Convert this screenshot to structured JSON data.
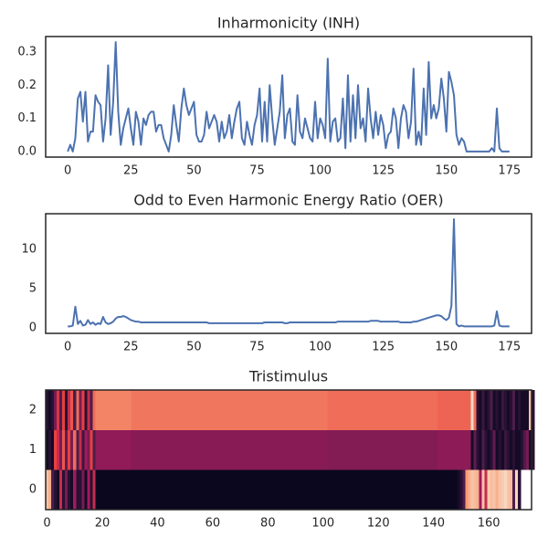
{
  "chart_data": [
    {
      "type": "line",
      "title": "Inharmonicity (INH)",
      "color": "#4c72b0",
      "x": [
        0,
        1,
        2,
        3,
        4,
        5,
        6,
        7,
        8,
        9,
        10,
        11,
        12,
        13,
        14,
        15,
        16,
        17,
        18,
        19,
        20,
        21,
        22,
        23,
        24,
        25,
        26,
        27,
        28,
        29,
        30,
        31,
        32,
        33,
        34,
        35,
        36,
        37,
        38,
        39,
        40,
        41,
        42,
        43,
        44,
        45,
        46,
        47,
        48,
        49,
        50,
        51,
        52,
        53,
        54,
        55,
        56,
        57,
        58,
        59,
        60,
        61,
        62,
        63,
        64,
        65,
        66,
        67,
        68,
        69,
        70,
        71,
        72,
        73,
        74,
        75,
        76,
        77,
        78,
        79,
        80,
        81,
        82,
        83,
        84,
        85,
        86,
        87,
        88,
        89,
        90,
        91,
        92,
        93,
        94,
        95,
        96,
        97,
        98,
        99,
        100,
        101,
        102,
        103,
        104,
        105,
        106,
        107,
        108,
        109,
        110,
        111,
        112,
        113,
        114,
        115,
        116,
        117,
        118,
        119,
        120,
        121,
        122,
        123,
        124,
        125,
        126,
        127,
        128,
        129,
        130,
        131,
        132,
        133,
        134,
        135,
        136,
        137,
        138,
        139,
        140,
        141,
        142,
        143,
        144,
        145,
        146,
        147,
        148,
        149,
        150,
        151,
        152,
        153,
        154,
        155,
        156,
        157,
        158,
        159,
        160,
        161,
        162,
        163,
        164,
        165,
        166,
        167,
        168,
        169,
        170,
        171,
        172,
        173,
        174,
        175
      ],
      "values": [
        0,
        0.02,
        0,
        0.04,
        0.16,
        0.18,
        0.09,
        0.18,
        0.03,
        0.06,
        0.06,
        0.17,
        0.15,
        0.14,
        0.03,
        0.1,
        0.26,
        0.05,
        0.15,
        0.33,
        0.12,
        0.02,
        0.07,
        0.1,
        0.13,
        0.07,
        0.02,
        0.12,
        0.09,
        0.02,
        0.1,
        0.08,
        0.11,
        0.12,
        0.12,
        0.06,
        0.08,
        0.08,
        0.04,
        0.02,
        0,
        0.05,
        0.14,
        0.08,
        0.03,
        0.13,
        0.19,
        0.14,
        0.11,
        0.13,
        0.15,
        0.05,
        0.03,
        0.03,
        0.05,
        0.12,
        0.07,
        0.09,
        0.11,
        0.09,
        0.03,
        0.09,
        0.04,
        0.06,
        0.11,
        0.04,
        0.09,
        0.13,
        0.15,
        0.04,
        0.02,
        0.09,
        0.05,
        0.02,
        0.08,
        0.11,
        0.19,
        0.03,
        0.15,
        0.03,
        0.2,
        0.1,
        0.02,
        0.07,
        0.12,
        0.23,
        0.04,
        0.11,
        0.13,
        0.03,
        0.02,
        0.17,
        0.06,
        0.04,
        0.1,
        0.07,
        0.04,
        0.03,
        0.15,
        0.04,
        0.1,
        0.08,
        0.04,
        0.28,
        0.03,
        0.09,
        0.1,
        0.03,
        0.04,
        0.16,
        0.01,
        0.23,
        0.03,
        0.17,
        0.04,
        0.2,
        0.07,
        0.1,
        0.03,
        0.19,
        0.1,
        0.04,
        0.12,
        0.05,
        0.11,
        0.08,
        0.01,
        0.05,
        0.06,
        0.13,
        0.1,
        0.01,
        0.1,
        0.14,
        0.12,
        0.04,
        0.09,
        0.25,
        0.02,
        0.06,
        0.02,
        0.19,
        0.05,
        0.27,
        0.1,
        0.14,
        0.1,
        0.13,
        0.22,
        0.16,
        0.06,
        0.24,
        0.21,
        0.17,
        0.05,
        0.02,
        0.04,
        0.03,
        0,
        0,
        0,
        0,
        0,
        0,
        0,
        0,
        0,
        0,
        0.01,
        0,
        0.13,
        0.01,
        0,
        0,
        0,
        0
      ],
      "xlim": [
        -8.75,
        183.75
      ],
      "ylim": [
        -0.017,
        0.347
      ],
      "xticks": [
        0,
        25,
        50,
        75,
        100,
        125,
        150,
        175
      ],
      "yticks": [
        {
          "value": 0,
          "label": "0.0"
        },
        0.1,
        0.2,
        0.3
      ]
    },
    {
      "type": "line",
      "title": "Odd to Even Harmonic Energy Ratio (OER)",
      "color": "#4c72b0",
      "x": [
        0,
        1,
        2,
        3,
        4,
        5,
        6,
        7,
        8,
        9,
        10,
        11,
        12,
        13,
        14,
        15,
        16,
        17,
        18,
        19,
        20,
        21,
        22,
        23,
        24,
        25,
        26,
        27,
        28,
        29,
        30,
        31,
        32,
        33,
        34,
        35,
        36,
        37,
        38,
        39,
        40,
        41,
        42,
        43,
        44,
        45,
        46,
        47,
        48,
        49,
        50,
        51,
        52,
        53,
        54,
        55,
        56,
        57,
        58,
        59,
        60,
        61,
        62,
        63,
        64,
        65,
        66,
        67,
        68,
        69,
        70,
        71,
        72,
        73,
        74,
        75,
        76,
        77,
        78,
        79,
        80,
        81,
        82,
        83,
        84,
        85,
        86,
        87,
        88,
        89,
        90,
        91,
        92,
        93,
        94,
        95,
        96,
        97,
        98,
        99,
        100,
        101,
        102,
        103,
        104,
        105,
        106,
        107,
        108,
        109,
        110,
        111,
        112,
        113,
        114,
        115,
        116,
        117,
        118,
        119,
        120,
        121,
        122,
        123,
        124,
        125,
        126,
        127,
        128,
        129,
        130,
        131,
        132,
        133,
        134,
        135,
        136,
        137,
        138,
        139,
        140,
        141,
        142,
        143,
        144,
        145,
        146,
        147,
        148,
        149,
        150,
        151,
        152,
        153,
        154,
        155,
        156,
        157,
        158,
        159,
        160,
        161,
        162,
        163,
        164,
        165,
        166,
        167,
        168,
        169,
        170,
        171,
        172,
        173,
        174,
        175
      ],
      "values": [
        0.2,
        0.2,
        0.3,
        2.7,
        0.5,
        0.9,
        0.3,
        0.4,
        1.0,
        0.5,
        0.7,
        0.4,
        0.6,
        0.5,
        1.4,
        0.7,
        0.5,
        0.6,
        0.8,
        1.2,
        1.4,
        1.4,
        1.5,
        1.4,
        1.2,
        1.0,
        0.9,
        0.8,
        0.8,
        0.7,
        0.7,
        0.7,
        0.7,
        0.7,
        0.7,
        0.7,
        0.7,
        0.7,
        0.7,
        0.7,
        0.7,
        0.7,
        0.7,
        0.7,
        0.7,
        0.7,
        0.7,
        0.7,
        0.7,
        0.7,
        0.7,
        0.7,
        0.7,
        0.7,
        0.7,
        0.7,
        0.6,
        0.6,
        0.6,
        0.6,
        0.6,
        0.6,
        0.6,
        0.6,
        0.6,
        0.6,
        0.6,
        0.6,
        0.6,
        0.6,
        0.6,
        0.6,
        0.6,
        0.6,
        0.6,
        0.6,
        0.6,
        0.6,
        0.7,
        0.7,
        0.7,
        0.7,
        0.7,
        0.7,
        0.7,
        0.7,
        0.6,
        0.6,
        0.7,
        0.7,
        0.7,
        0.7,
        0.7,
        0.7,
        0.7,
        0.7,
        0.7,
        0.7,
        0.7,
        0.7,
        0.7,
        0.7,
        0.7,
        0.7,
        0.7,
        0.7,
        0.7,
        0.8,
        0.8,
        0.8,
        0.8,
        0.8,
        0.8,
        0.8,
        0.8,
        0.8,
        0.8,
        0.8,
        0.8,
        0.8,
        0.9,
        0.9,
        0.9,
        0.9,
        0.8,
        0.8,
        0.8,
        0.8,
        0.8,
        0.8,
        0.8,
        0.8,
        0.7,
        0.7,
        0.7,
        0.7,
        0.7,
        0.8,
        0.8,
        0.9,
        1.0,
        1.1,
        1.2,
        1.3,
        1.4,
        1.5,
        1.6,
        1.6,
        1.5,
        1.2,
        1.0,
        1.3,
        2.8,
        13.8,
        0.5,
        0.2,
        0.3,
        0.2,
        0.2,
        0.2,
        0.2,
        0.2,
        0.2,
        0.2,
        0.2,
        0.2,
        0.2,
        0.2,
        0.2,
        0.3,
        2.1,
        0.3,
        0.2,
        0.2,
        0.2,
        0.2
      ],
      "xlim": [
        -8.75,
        183.75
      ],
      "ylim": [
        -0.69,
        14.5
      ],
      "xticks": [
        0,
        25,
        50,
        75,
        100,
        125,
        150,
        175
      ],
      "yticks": [
        0,
        5,
        10
      ]
    },
    {
      "type": "heatmap",
      "title": "Tristimulus",
      "z": [
        [
          0.9,
          0.85,
          0.2,
          0.1,
          0.05,
          0.5,
          0.1,
          0.3,
          0.1,
          0.05,
          0.4,
          0.1,
          0.1,
          0.3,
          0.05,
          0.4,
          0.1,
          0.5,
          0.02,
          0.02,
          0.02,
          0.02,
          0.02,
          0.02,
          0.02,
          0.02,
          0.02,
          0.02,
          0.02,
          0.02,
          0.02,
          0.02,
          0.02,
          0.02,
          0.02,
          0.02,
          0.02,
          0.02,
          0.02,
          0.02,
          0.02,
          0.02,
          0.02,
          0.02,
          0.02,
          0.02,
          0.02,
          0.02,
          0.02,
          0.02,
          0.02,
          0.02,
          0.02,
          0.02,
          0.02,
          0.02,
          0.02,
          0.02,
          0.02,
          0.02,
          0.02,
          0.02,
          0.02,
          0.02,
          0.02,
          0.02,
          0.02,
          0.02,
          0.02,
          0.02,
          0.02,
          0.02,
          0.02,
          0.02,
          0.02,
          0.02,
          0.02,
          0.02,
          0.02,
          0.02,
          0.02,
          0.02,
          0.02,
          0.02,
          0.02,
          0.02,
          0.02,
          0.02,
          0.02,
          0.02,
          0.02,
          0.02,
          0.02,
          0.02,
          0.02,
          0.02,
          0.02,
          0.02,
          0.02,
          0.02,
          0.02,
          0.02,
          0.02,
          0.02,
          0.02,
          0.02,
          0.02,
          0.02,
          0.02,
          0.02,
          0.02,
          0.02,
          0.02,
          0.02,
          0.02,
          0.02,
          0.02,
          0.02,
          0.02,
          0.02,
          0.02,
          0.02,
          0.02,
          0.02,
          0.02,
          0.02,
          0.02,
          0.02,
          0.02,
          0.02,
          0.02,
          0.02,
          0.02,
          0.02,
          0.02,
          0.02,
          0.02,
          0.02,
          0.02,
          0.02,
          0.02,
          0.02,
          0.02,
          0.02,
          0.02,
          0.02,
          0.02,
          0.02,
          0.02,
          0.05,
          0.1,
          0.2,
          0.8,
          0.85,
          0.9,
          0.88,
          0.85,
          0.4,
          0.9,
          0.5,
          0.92,
          0.88,
          0.9,
          0.85,
          0.9,
          0.92,
          0.95,
          0.9,
          0.88,
          0.2,
          0.95,
          0.1
        ],
        [
          0.05,
          0.1,
          0.05,
          0.6,
          0.5,
          0.3,
          0.65,
          0.25,
          0.6,
          0.3,
          0.7,
          0.2,
          0.5,
          0.15,
          0.4,
          0.3,
          0.6,
          0.2,
          0.36,
          0.36,
          0.36,
          0.36,
          0.36,
          0.36,
          0.36,
          0.36,
          0.36,
          0.36,
          0.36,
          0.36,
          0.36,
          0.34,
          0.34,
          0.34,
          0.34,
          0.34,
          0.34,
          0.34,
          0.34,
          0.34,
          0.34,
          0.34,
          0.34,
          0.34,
          0.34,
          0.34,
          0.34,
          0.34,
          0.34,
          0.34,
          0.34,
          0.34,
          0.34,
          0.34,
          0.34,
          0.34,
          0.34,
          0.34,
          0.34,
          0.34,
          0.34,
          0.34,
          0.34,
          0.34,
          0.34,
          0.34,
          0.34,
          0.34,
          0.34,
          0.34,
          0.34,
          0.34,
          0.34,
          0.34,
          0.34,
          0.34,
          0.34,
          0.34,
          0.34,
          0.34,
          0.34,
          0.34,
          0.34,
          0.34,
          0.34,
          0.34,
          0.34,
          0.34,
          0.34,
          0.34,
          0.34,
          0.34,
          0.34,
          0.34,
          0.34,
          0.34,
          0.34,
          0.34,
          0.34,
          0.34,
          0.34,
          0.34,
          0.33,
          0.33,
          0.33,
          0.33,
          0.33,
          0.33,
          0.33,
          0.33,
          0.33,
          0.33,
          0.33,
          0.33,
          0.33,
          0.33,
          0.33,
          0.33,
          0.33,
          0.33,
          0.33,
          0.33,
          0.33,
          0.33,
          0.33,
          0.33,
          0.33,
          0.33,
          0.33,
          0.33,
          0.33,
          0.33,
          0.33,
          0.33,
          0.33,
          0.33,
          0.33,
          0.33,
          0.33,
          0.33,
          0.33,
          0.33,
          0.35,
          0.35,
          0.35,
          0.35,
          0.35,
          0.35,
          0.35,
          0.35,
          0.35,
          0.35,
          0.35,
          0.35,
          0.05,
          0.25,
          0.1,
          0.05,
          0.2,
          0.1,
          0.05,
          0.1,
          0.25,
          0.05,
          0.1,
          0.05,
          0.15,
          0.1,
          0.05,
          0.1,
          0.05,
          0.05,
          0.1,
          0.2,
          0.3,
          0.05,
          0.1
        ],
        [
          0.1,
          0.05,
          0.1,
          0.3,
          0.55,
          0.2,
          0.6,
          0.1,
          0.5,
          0.65,
          0.2,
          0.7,
          0.3,
          0.6,
          0.1,
          0.5,
          0.2,
          0.7,
          0.75,
          0.75,
          0.75,
          0.75,
          0.75,
          0.75,
          0.75,
          0.75,
          0.75,
          0.75,
          0.75,
          0.75,
          0.75,
          0.72,
          0.72,
          0.72,
          0.72,
          0.72,
          0.72,
          0.72,
          0.72,
          0.72,
          0.72,
          0.72,
          0.72,
          0.72,
          0.72,
          0.72,
          0.72,
          0.72,
          0.72,
          0.72,
          0.72,
          0.72,
          0.72,
          0.72,
          0.72,
          0.72,
          0.72,
          0.72,
          0.72,
          0.72,
          0.72,
          0.72,
          0.72,
          0.72,
          0.72,
          0.72,
          0.72,
          0.72,
          0.72,
          0.72,
          0.72,
          0.72,
          0.72,
          0.72,
          0.72,
          0.72,
          0.72,
          0.72,
          0.72,
          0.72,
          0.72,
          0.72,
          0.72,
          0.72,
          0.72,
          0.72,
          0.72,
          0.72,
          0.72,
          0.72,
          0.72,
          0.72,
          0.72,
          0.72,
          0.72,
          0.72,
          0.72,
          0.72,
          0.72,
          0.72,
          0.72,
          0.72,
          0.7,
          0.7,
          0.7,
          0.7,
          0.7,
          0.7,
          0.7,
          0.7,
          0.7,
          0.7,
          0.7,
          0.7,
          0.7,
          0.7,
          0.7,
          0.7,
          0.7,
          0.7,
          0.7,
          0.7,
          0.7,
          0.7,
          0.7,
          0.7,
          0.7,
          0.7,
          0.7,
          0.7,
          0.7,
          0.7,
          0.7,
          0.7,
          0.7,
          0.7,
          0.7,
          0.7,
          0.7,
          0.7,
          0.7,
          0.7,
          0.68,
          0.68,
          0.68,
          0.68,
          0.68,
          0.68,
          0.68,
          0.68,
          0.68,
          0.68,
          0.68,
          0.68,
          0.95,
          0.7,
          0.1,
          0.05,
          0.15,
          0.05,
          0.1,
          0.2,
          0.05,
          0.1,
          0.05,
          0.15,
          0.1,
          0.05,
          0.1,
          0.2,
          0.05,
          0.1,
          0.05,
          0.05,
          0.05,
          0.9,
          0.1
        ]
      ],
      "xlim": [
        -0.5,
        175.5
      ],
      "ylim": [
        -0.5,
        2.5
      ],
      "xticks": [
        0,
        20,
        40,
        60,
        80,
        100,
        120,
        140,
        160
      ],
      "yticks": [
        0,
        1,
        2
      ]
    }
  ]
}
